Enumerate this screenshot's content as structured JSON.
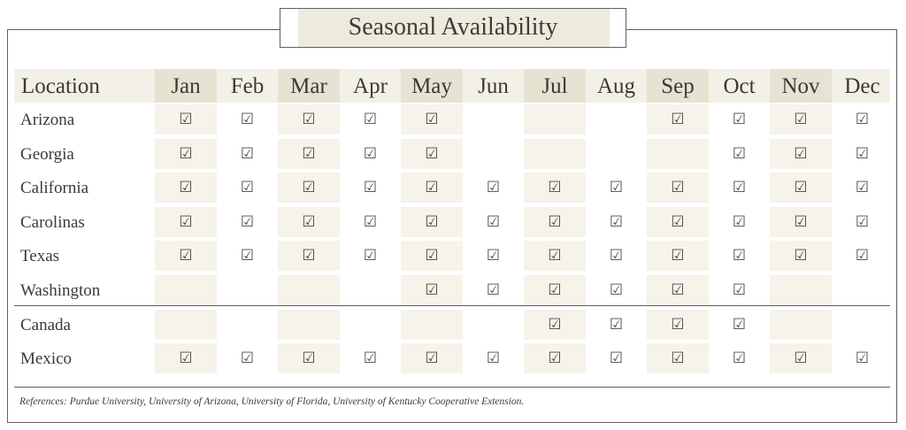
{
  "title": "Seasonal Availability",
  "table": {
    "location_header": "Location",
    "months": [
      "Jan",
      "Feb",
      "Mar",
      "Apr",
      "May",
      "Jun",
      "Jul",
      "Aug",
      "Sep",
      "Oct",
      "Nov",
      "Dec"
    ],
    "rows": [
      {
        "location": "Arizona",
        "available": [
          1,
          1,
          1,
          1,
          1,
          0,
          0,
          0,
          1,
          1,
          1,
          1
        ]
      },
      {
        "location": "Georgia",
        "available": [
          1,
          1,
          1,
          1,
          1,
          0,
          0,
          0,
          0,
          1,
          1,
          1
        ]
      },
      {
        "location": "California",
        "available": [
          1,
          1,
          1,
          1,
          1,
          1,
          1,
          1,
          1,
          1,
          1,
          1
        ]
      },
      {
        "location": "Carolinas",
        "available": [
          1,
          1,
          1,
          1,
          1,
          1,
          1,
          1,
          1,
          1,
          1,
          1
        ]
      },
      {
        "location": "Texas",
        "available": [
          1,
          1,
          1,
          1,
          1,
          1,
          1,
          1,
          1,
          1,
          1,
          1
        ]
      },
      {
        "location": "Washington",
        "available": [
          0,
          0,
          0,
          0,
          1,
          1,
          1,
          1,
          1,
          1,
          0,
          0
        ]
      },
      {
        "location": "Canada",
        "available": [
          0,
          0,
          0,
          0,
          0,
          0,
          1,
          1,
          1,
          1,
          0,
          0
        ]
      },
      {
        "location": "Mexico",
        "available": [
          1,
          1,
          1,
          1,
          1,
          1,
          1,
          1,
          1,
          1,
          1,
          1
        ]
      }
    ],
    "check_glyph": "☑"
  },
  "references": "References: Purdue University, University of Arizona, University of Florida, University of Kentucky Cooperative Extension.",
  "colors": {
    "header_band": "#f3f1e7",
    "shaded_header": "#e6e3d3",
    "shaded_cell": "#f5f3ea",
    "title_bg": "#edebdd",
    "border": "#5f5f5f"
  }
}
